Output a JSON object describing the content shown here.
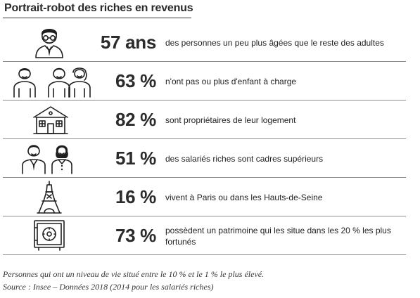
{
  "title": "Portrait-robot des riches en revenus",
  "rows": [
    {
      "icon": "elderly-man-icon",
      "stat": "57 ans",
      "text": "des personnes un peu plus âgées que le reste des adultes"
    },
    {
      "icon": "family-icon",
      "stat": "63 %",
      "text": "n'ont pas ou plus d'enfant à charge"
    },
    {
      "icon": "house-icon",
      "stat": "82 %",
      "text": "sont propriétaires de leur logement"
    },
    {
      "icon": "business-people-icon",
      "stat": "51 %",
      "text": "des salariés riches sont cadres supérieurs"
    },
    {
      "icon": "eiffel-tower-icon",
      "stat": "16 %",
      "text": "vivent à Paris ou dans les Hauts-de-Seine"
    },
    {
      "icon": "safe-icon",
      "stat": "73 %",
      "text": "possèdent un patrimoine qui les situe dans les 20 % les plus fortunés"
    }
  ],
  "footnotes": {
    "definition": "Personnes qui ont un niveau de vie situé entre le 10 % et le 1 % le plus élevé.",
    "source": "Source : Insee – Données 2018 (2014 pour les salariés riches)"
  }
}
